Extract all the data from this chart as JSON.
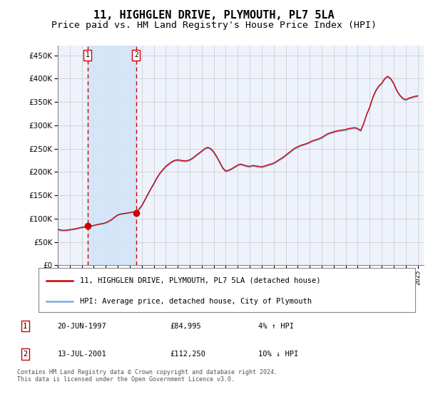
{
  "title": "11, HIGHGLEN DRIVE, PLYMOUTH, PL7 5LA",
  "subtitle": "Price paid vs. HM Land Registry's House Price Index (HPI)",
  "title_fontsize": 11,
  "subtitle_fontsize": 9.5,
  "background_color": "#ffffff",
  "plot_bg_color": "#eef2fb",
  "grid_color": "#c8c8c8",
  "red_line_color": "#cc0000",
  "blue_line_color": "#7aaadd",
  "shade_color": "#d0e4f8",
  "ylim": [
    0,
    470000
  ],
  "yticks": [
    0,
    50000,
    100000,
    150000,
    200000,
    250000,
    300000,
    350000,
    400000,
    450000
  ],
  "xlim_start": 1995.0,
  "xlim_end": 2025.5,
  "sale1_x": 1997.47,
  "sale1_y": 84995,
  "sale2_x": 2001.53,
  "sale2_y": 112250,
  "legend_label_red": "11, HIGHGLEN DRIVE, PLYMOUTH, PL7 5LA (detached house)",
  "legend_label_blue": "HPI: Average price, detached house, City of Plymouth",
  "table_rows": [
    {
      "num": "1",
      "date": "20-JUN-1997",
      "price": "£84,995",
      "hpi": "4% ↑ HPI"
    },
    {
      "num": "2",
      "date": "13-JUL-2001",
      "price": "£112,250",
      "hpi": "10% ↓ HPI"
    }
  ],
  "footnote": "Contains HM Land Registry data © Crown copyright and database right 2024.\nThis data is licensed under the Open Government Licence v3.0.",
  "hpi_data": {
    "years": [
      1995.0,
      1995.25,
      1995.5,
      1995.75,
      1996.0,
      1996.25,
      1996.5,
      1996.75,
      1997.0,
      1997.25,
      1997.5,
      1997.75,
      1998.0,
      1998.25,
      1998.5,
      1998.75,
      1999.0,
      1999.25,
      1999.5,
      1999.75,
      2000.0,
      2000.25,
      2000.5,
      2000.75,
      2001.0,
      2001.25,
      2001.5,
      2001.75,
      2002.0,
      2002.25,
      2002.5,
      2002.75,
      2003.0,
      2003.25,
      2003.5,
      2003.75,
      2004.0,
      2004.25,
      2004.5,
      2004.75,
      2005.0,
      2005.25,
      2005.5,
      2005.75,
      2006.0,
      2006.25,
      2006.5,
      2006.75,
      2007.0,
      2007.25,
      2007.5,
      2007.75,
      2008.0,
      2008.25,
      2008.5,
      2008.75,
      2009.0,
      2009.25,
      2009.5,
      2009.75,
      2010.0,
      2010.25,
      2010.5,
      2010.75,
      2011.0,
      2011.25,
      2011.5,
      2011.75,
      2012.0,
      2012.25,
      2012.5,
      2012.75,
      2013.0,
      2013.25,
      2013.5,
      2013.75,
      2014.0,
      2014.25,
      2014.5,
      2014.75,
      2015.0,
      2015.25,
      2015.5,
      2015.75,
      2016.0,
      2016.25,
      2016.5,
      2016.75,
      2017.0,
      2017.25,
      2017.5,
      2017.75,
      2018.0,
      2018.25,
      2018.5,
      2018.75,
      2019.0,
      2019.25,
      2019.5,
      2019.75,
      2020.0,
      2020.25,
      2020.5,
      2020.75,
      2021.0,
      2021.25,
      2021.5,
      2021.75,
      2022.0,
      2022.25,
      2022.5,
      2022.75,
      2023.0,
      2023.25,
      2023.5,
      2023.75,
      2024.0,
      2024.25,
      2024.5,
      2024.75,
      2025.0
    ],
    "values": [
      75000,
      74000,
      73500,
      74000,
      75000,
      76000,
      77000,
      78500,
      80000,
      81000,
      82000,
      83500,
      85000,
      86500,
      87500,
      88500,
      90000,
      93000,
      97000,
      102000,
      107000,
      109000,
      110000,
      111000,
      112000,
      113500,
      114500,
      118000,
      126000,
      138000,
      150000,
      162000,
      173000,
      185000,
      195000,
      203000,
      210000,
      215000,
      220000,
      223000,
      224000,
      223000,
      222000,
      222000,
      224000,
      228000,
      233000,
      238000,
      243000,
      248000,
      251000,
      248000,
      241000,
      231000,
      219000,
      207000,
      200000,
      202000,
      205000,
      209000,
      213000,
      215000,
      213000,
      211000,
      210000,
      212000,
      211000,
      210000,
      209000,
      211000,
      213000,
      215000,
      217000,
      221000,
      225000,
      229000,
      234000,
      239000,
      244000,
      249000,
      252000,
      255000,
      257000,
      259000,
      262000,
      265000,
      267000,
      269000,
      272000,
      276000,
      280000,
      282000,
      284000,
      286000,
      287000,
      288000,
      289000,
      291000,
      292000,
      293000,
      291000,
      287000,
      302000,
      322000,
      337000,
      357000,
      372000,
      382000,
      388000,
      398000,
      403000,
      398000,
      388000,
      373000,
      363000,
      356000,
      353000,
      356000,
      358000,
      360000,
      361000
    ]
  },
  "house_data": {
    "years": [
      1995.0,
      1995.25,
      1995.5,
      1995.75,
      1996.0,
      1996.25,
      1996.5,
      1996.75,
      1997.0,
      1997.25,
      1997.47,
      1997.75,
      1998.0,
      1998.25,
      1998.5,
      1998.75,
      1999.0,
      1999.25,
      1999.5,
      1999.75,
      2000.0,
      2000.25,
      2000.5,
      2000.75,
      2001.0,
      2001.25,
      2001.53,
      2001.75,
      2002.0,
      2002.25,
      2002.5,
      2002.75,
      2003.0,
      2003.25,
      2003.5,
      2003.75,
      2004.0,
      2004.25,
      2004.5,
      2004.75,
      2005.0,
      2005.25,
      2005.5,
      2005.75,
      2006.0,
      2006.25,
      2006.5,
      2006.75,
      2007.0,
      2007.25,
      2007.5,
      2007.75,
      2008.0,
      2008.25,
      2008.5,
      2008.75,
      2009.0,
      2009.25,
      2009.5,
      2009.75,
      2010.0,
      2010.25,
      2010.5,
      2010.75,
      2011.0,
      2011.25,
      2011.5,
      2011.75,
      2012.0,
      2012.25,
      2012.5,
      2012.75,
      2013.0,
      2013.25,
      2013.5,
      2013.75,
      2014.0,
      2014.25,
      2014.5,
      2014.75,
      2015.0,
      2015.25,
      2015.5,
      2015.75,
      2016.0,
      2016.25,
      2016.5,
      2016.75,
      2017.0,
      2017.25,
      2017.5,
      2017.75,
      2018.0,
      2018.25,
      2018.5,
      2018.75,
      2019.0,
      2019.25,
      2019.5,
      2019.75,
      2020.0,
      2020.25,
      2020.5,
      2020.75,
      2021.0,
      2021.25,
      2021.5,
      2021.75,
      2022.0,
      2022.25,
      2022.5,
      2022.75,
      2023.0,
      2023.25,
      2023.5,
      2023.75,
      2024.0,
      2024.25,
      2024.5,
      2024.75,
      2025.0
    ],
    "values": [
      77000,
      76000,
      75000,
      75500,
      76500,
      77500,
      78500,
      80000,
      81500,
      82500,
      84995,
      84000,
      85500,
      87000,
      88500,
      89500,
      91500,
      94500,
      98500,
      103500,
      108000,
      110000,
      111000,
      112000,
      113000,
      114500,
      112250,
      120000,
      128000,
      140000,
      152000,
      164000,
      175000,
      187000,
      197000,
      205000,
      212000,
      217000,
      222000,
      225000,
      226000,
      225000,
      224000,
      224000,
      226000,
      230000,
      235000,
      240000,
      245000,
      250000,
      253000,
      250000,
      243000,
      233000,
      221000,
      209000,
      202000,
      204000,
      207000,
      211000,
      215000,
      217000,
      215000,
      213000,
      212000,
      214000,
      213000,
      212000,
      211000,
      213000,
      215000,
      217000,
      219000,
      223000,
      227000,
      231000,
      236000,
      241000,
      246000,
      251000,
      254000,
      257000,
      259000,
      261000,
      264000,
      267000,
      269000,
      271000,
      274000,
      278000,
      282000,
      284000,
      286000,
      288000,
      289000,
      290000,
      291000,
      293000,
      294000,
      295000,
      293000,
      289000,
      304000,
      324000,
      339000,
      359000,
      374000,
      384000,
      390000,
      400000,
      405000,
      400000,
      390000,
      375000,
      365000,
      358000,
      355000,
      358000,
      360000,
      362000,
      363000
    ]
  }
}
